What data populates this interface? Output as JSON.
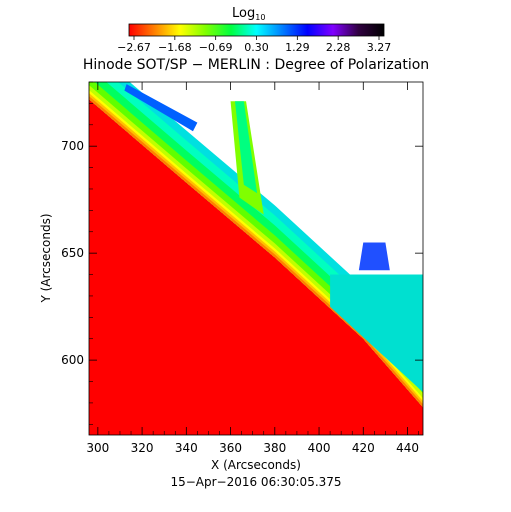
{
  "chart_data": {
    "type": "heatmap",
    "title": "Hinode SOT/SP − MERLIN : Degree of Polarization",
    "xlabel": "X (Arcseconds)",
    "ylabel": "Y (Arcseconds)",
    "footer": "15−Apr−2016 06:30:05.375",
    "xlim": [
      296,
      447
    ],
    "ylim": [
      565,
      730
    ],
    "x_ticks": [
      "300",
      "320",
      "340",
      "360",
      "380",
      "400",
      "420",
      "440"
    ],
    "x_tick_values": [
      300,
      320,
      340,
      360,
      380,
      400,
      420,
      440
    ],
    "y_ticks": [
      "600",
      "650",
      "700"
    ],
    "y_tick_values": [
      600,
      650,
      700
    ],
    "colorbar": {
      "title": "Log",
      "title_subscript": "10",
      "ticks": [
        "−2.67",
        "−1.68",
        "−0.69",
        "0.30",
        "1.29",
        "2.28",
        "3.27"
      ],
      "range": [
        -2.67,
        3.27
      ],
      "colormap": [
        "#ff0000",
        "#ff8000",
        "#ffff00",
        "#80ff00",
        "#00ff40",
        "#00ffff",
        "#0080ff",
        "#0000ff",
        "#8000ff",
        "#300040",
        "#000000"
      ]
    },
    "approx_boundary": {
      "description": "limb edge (red region lies below-left)",
      "points": [
        [
          296,
          722
        ],
        [
          340,
          683
        ],
        [
          380,
          648
        ],
        [
          420,
          610
        ],
        [
          447,
          578
        ]
      ]
    },
    "background_value_color": "#ff0000",
    "no_data_color": "#ffffff"
  }
}
